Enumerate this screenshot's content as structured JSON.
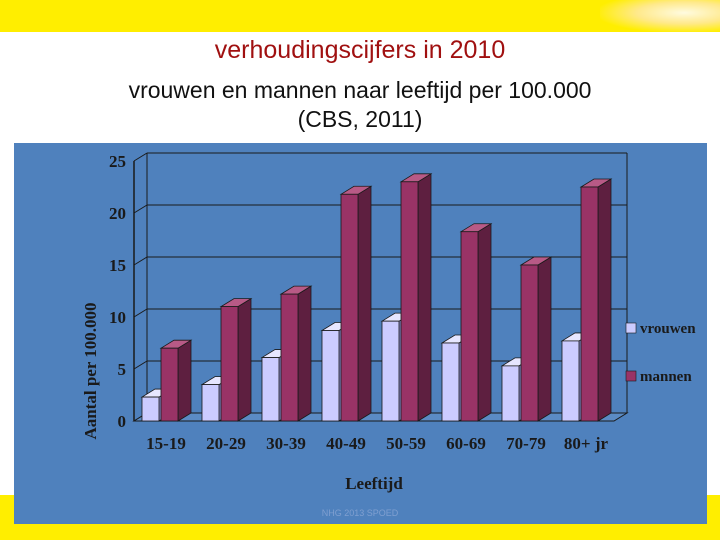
{
  "page": {
    "title": "verhoudingscijfers in 2010",
    "subtitle_line1": "vrouwen en mannen naar leeftijd per 100.000",
    "subtitle_line2": "(CBS, 2011)",
    "footer": "NHG 2013 SPOED"
  },
  "colors": {
    "band_yellow": "#ffee00",
    "chart_background": "#4f81bd",
    "title_red": "#a01010",
    "vrouwen_front": "#ccccff",
    "mannen_front": "#993366"
  },
  "chart_data": {
    "type": "bar",
    "categories": [
      "15-19",
      "20-29",
      "30-39",
      "40-49",
      "50-59",
      "60-69",
      "70-79",
      "80+ jr"
    ],
    "series": [
      {
        "name": "vrouwen",
        "values": [
          2.3,
          3.5,
          6.1,
          8.7,
          9.6,
          7.5,
          5.3,
          7.7
        ]
      },
      {
        "name": "mannen",
        "values": [
          7.0,
          11.0,
          12.2,
          21.8,
          23.0,
          18.2,
          15.0,
          22.5
        ]
      }
    ],
    "yticks": [
      "0",
      "5",
      "10",
      "15",
      "20",
      "25"
    ],
    "ylim": [
      0,
      25
    ],
    "ylabel": "Aantal per 100.000",
    "xlabel": "Leeftijd",
    "legend": "right",
    "grid": true
  }
}
